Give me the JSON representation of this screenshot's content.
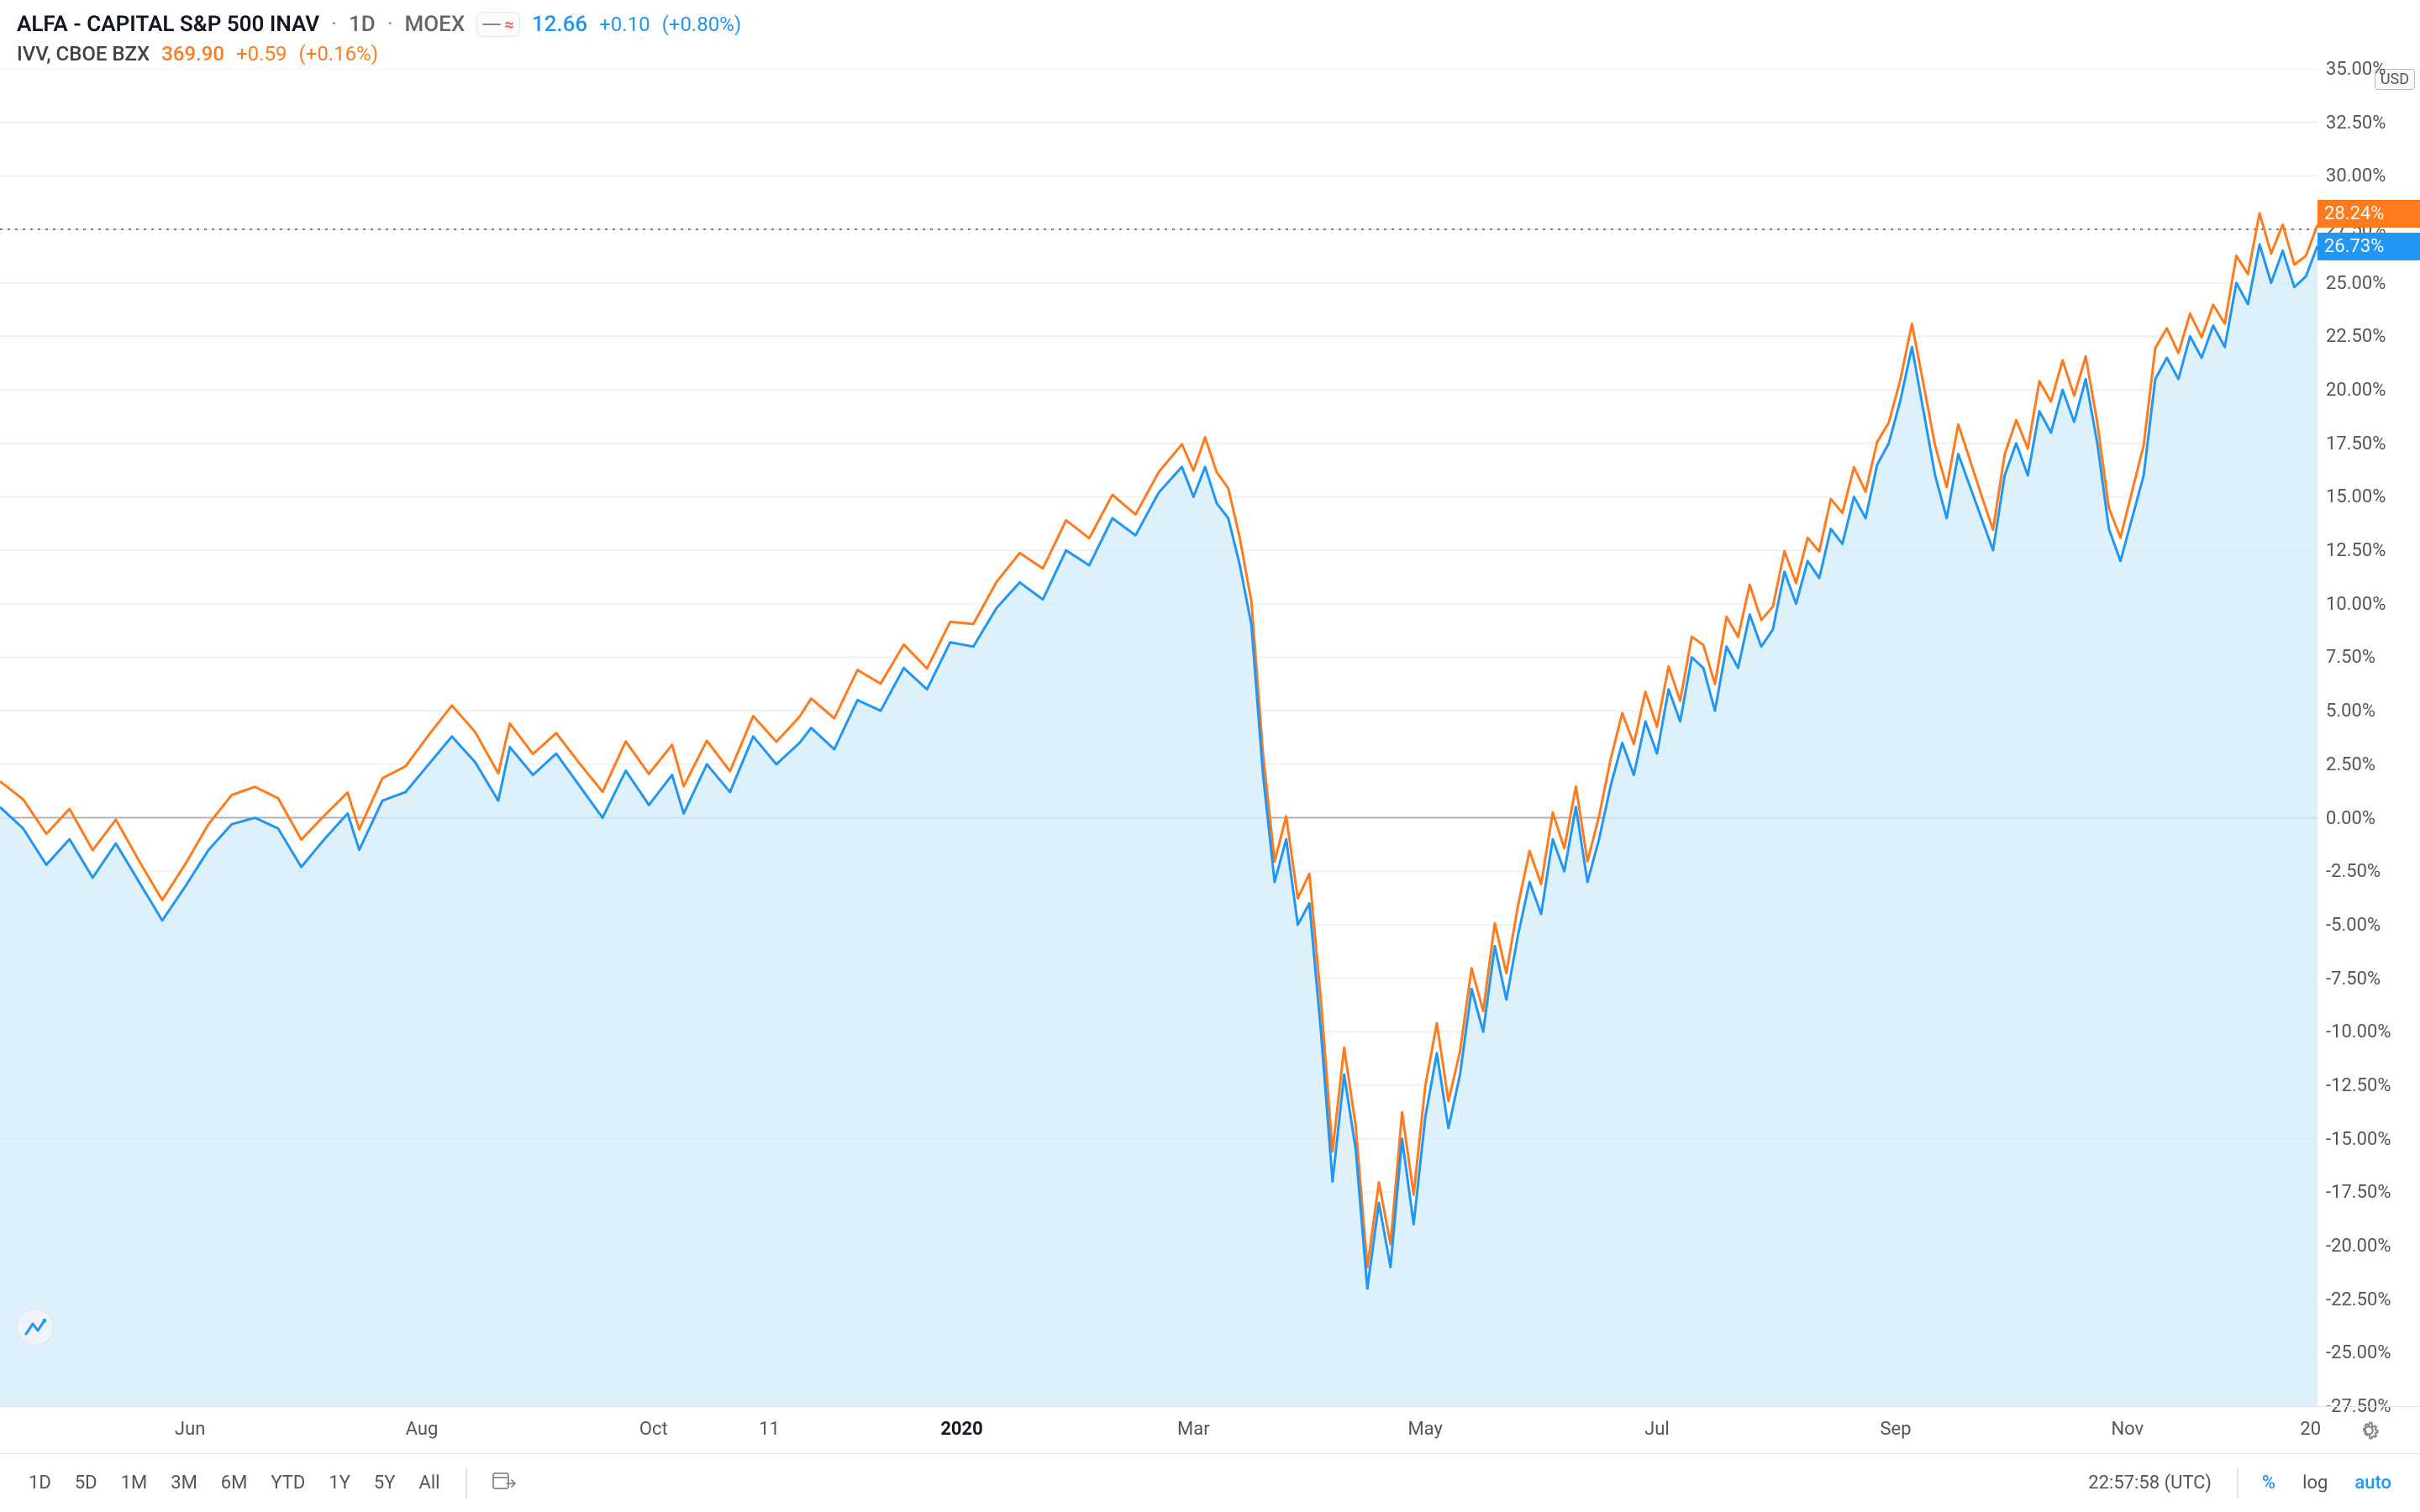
{
  "header": {
    "primary": {
      "title": "ALFA - CAPITAL S&P 500 INAV",
      "interval": "1D",
      "exchange": "MOEX",
      "price": "12.66",
      "change_abs": "+0.10",
      "change_pct": "(+0.80%)",
      "color": "#2196f3"
    },
    "secondary": {
      "title": "IVV, CBOE BZX",
      "price": "369.90",
      "change_abs": "+0.59",
      "change_pct": "(+0.16%)",
      "color": "#ff7b1d"
    }
  },
  "chart": {
    "type": "line-area-comparison",
    "background_color": "#ffffff",
    "grid_color": "#f0f0f0",
    "zero_line_color": "#b0b0b0",
    "dotted_ref_color": "#808080",
    "area_fill": "#d6ecf8",
    "ymin": -27.5,
    "ymax": 35.0,
    "ytick_step": 2.5,
    "currency_badge": "USD",
    "price_labels": [
      {
        "value": "28.24%",
        "y_pct": 28.24,
        "bg": "#ff7b1d"
      },
      {
        "value": "26.73%",
        "y_pct": 26.73,
        "bg": "#2196f3"
      }
    ],
    "dotted_ref_pct": 27.5,
    "xticks": [
      {
        "label": "Jun",
        "pos": 0.082,
        "bold": false
      },
      {
        "label": "Aug",
        "pos": 0.182,
        "bold": false
      },
      {
        "label": "Oct",
        "pos": 0.282,
        "bold": false
      },
      {
        "label": "11",
        "pos": 0.332,
        "bold": false
      },
      {
        "label": "2020",
        "pos": 0.415,
        "bold": true
      },
      {
        "label": "Mar",
        "pos": 0.515,
        "bold": false
      },
      {
        "label": "May",
        "pos": 0.615,
        "bold": false
      },
      {
        "label": "Jul",
        "pos": 0.715,
        "bold": false
      },
      {
        "label": "Sep",
        "pos": 0.818,
        "bold": false
      },
      {
        "label": "Nov",
        "pos": 0.918,
        "bold": false
      },
      {
        "label": "20",
        "pos": 0.997,
        "bold": false
      }
    ],
    "xmin": 0,
    "xmax": 400,
    "series": {
      "blue": {
        "color": "#2196f3",
        "final_value": 26.73,
        "points": [
          [
            0,
            0.5
          ],
          [
            4,
            -0.5
          ],
          [
            8,
            -2.2
          ],
          [
            12,
            -1.0
          ],
          [
            16,
            -2.8
          ],
          [
            20,
            -1.2
          ],
          [
            24,
            -3.0
          ],
          [
            28,
            -4.8
          ],
          [
            32,
            -3.2
          ],
          [
            36,
            -1.5
          ],
          [
            40,
            -0.3
          ],
          [
            44,
            0.0
          ],
          [
            48,
            -0.5
          ],
          [
            52,
            -2.3
          ],
          [
            56,
            -1.0
          ],
          [
            60,
            0.2
          ],
          [
            62,
            -1.5
          ],
          [
            66,
            0.8
          ],
          [
            70,
            1.2
          ],
          [
            74,
            2.5
          ],
          [
            78,
            3.8
          ],
          [
            82,
            2.6
          ],
          [
            86,
            0.8
          ],
          [
            88,
            3.3
          ],
          [
            92,
            2.0
          ],
          [
            96,
            3.0
          ],
          [
            100,
            1.5
          ],
          [
            104,
            0.0
          ],
          [
            108,
            2.2
          ],
          [
            112,
            0.6
          ],
          [
            116,
            2.0
          ],
          [
            118,
            0.2
          ],
          [
            122,
            2.5
          ],
          [
            126,
            1.2
          ],
          [
            130,
            3.8
          ],
          [
            134,
            2.5
          ],
          [
            138,
            3.5
          ],
          [
            140,
            4.2
          ],
          [
            144,
            3.2
          ],
          [
            148,
            5.5
          ],
          [
            152,
            5.0
          ],
          [
            156,
            7.0
          ],
          [
            160,
            6.0
          ],
          [
            164,
            8.2
          ],
          [
            168,
            8.0
          ],
          [
            172,
            9.8
          ],
          [
            176,
            11.0
          ],
          [
            180,
            10.2
          ],
          [
            184,
            12.5
          ],
          [
            188,
            11.8
          ],
          [
            192,
            14.0
          ],
          [
            196,
            13.2
          ],
          [
            200,
            15.2
          ],
          [
            204,
            16.4
          ],
          [
            206,
            15.0
          ],
          [
            208,
            16.4
          ],
          [
            210,
            14.7
          ],
          [
            212,
            14.0
          ],
          [
            214,
            11.8
          ],
          [
            216,
            9.0
          ],
          [
            218,
            2.0
          ],
          [
            220,
            -3.0
          ],
          [
            222,
            -1.0
          ],
          [
            224,
            -5.0
          ],
          [
            226,
            -4.0
          ],
          [
            228,
            -10.0
          ],
          [
            230,
            -17.0
          ],
          [
            232,
            -12.0
          ],
          [
            234,
            -15.5
          ],
          [
            236,
            -22.0
          ],
          [
            238,
            -18.0
          ],
          [
            240,
            -21.0
          ],
          [
            242,
            -15.0
          ],
          [
            244,
            -19.0
          ],
          [
            246,
            -14.0
          ],
          [
            248,
            -11.0
          ],
          [
            250,
            -14.5
          ],
          [
            252,
            -12.0
          ],
          [
            254,
            -8.0
          ],
          [
            256,
            -10.0
          ],
          [
            258,
            -6.0
          ],
          [
            260,
            -8.5
          ],
          [
            262,
            -5.5
          ],
          [
            264,
            -3.0
          ],
          [
            266,
            -4.5
          ],
          [
            268,
            -1.0
          ],
          [
            270,
            -2.5
          ],
          [
            272,
            0.5
          ],
          [
            274,
            -3.0
          ],
          [
            276,
            -1.0
          ],
          [
            278,
            1.5
          ],
          [
            280,
            3.5
          ],
          [
            282,
            2.0
          ],
          [
            284,
            4.5
          ],
          [
            286,
            3.0
          ],
          [
            288,
            6.0
          ],
          [
            290,
            4.5
          ],
          [
            292,
            7.5
          ],
          [
            294,
            7.0
          ],
          [
            296,
            5.0
          ],
          [
            298,
            8.0
          ],
          [
            300,
            7.0
          ],
          [
            302,
            9.5
          ],
          [
            304,
            8.0
          ],
          [
            306,
            8.8
          ],
          [
            308,
            11.5
          ],
          [
            310,
            10.0
          ],
          [
            312,
            12.0
          ],
          [
            314,
            11.2
          ],
          [
            316,
            13.5
          ],
          [
            318,
            12.8
          ],
          [
            320,
            15.0
          ],
          [
            322,
            14.0
          ],
          [
            324,
            16.5
          ],
          [
            326,
            17.5
          ],
          [
            328,
            19.5
          ],
          [
            330,
            22.0
          ],
          [
            332,
            19.0
          ],
          [
            334,
            16.0
          ],
          [
            336,
            14.0
          ],
          [
            338,
            17.0
          ],
          [
            340,
            15.5
          ],
          [
            342,
            14.0
          ],
          [
            344,
            12.5
          ],
          [
            346,
            16.0
          ],
          [
            348,
            17.5
          ],
          [
            350,
            16.0
          ],
          [
            352,
            19.0
          ],
          [
            354,
            18.0
          ],
          [
            356,
            20.0
          ],
          [
            358,
            18.5
          ],
          [
            360,
            20.5
          ],
          [
            362,
            17.5
          ],
          [
            364,
            13.5
          ],
          [
            366,
            12.0
          ],
          [
            368,
            14.0
          ],
          [
            370,
            16.0
          ],
          [
            372,
            20.5
          ],
          [
            374,
            21.5
          ],
          [
            376,
            20.5
          ],
          [
            378,
            22.5
          ],
          [
            380,
            21.5
          ],
          [
            382,
            23.0
          ],
          [
            384,
            22.0
          ],
          [
            386,
            25.0
          ],
          [
            388,
            24.0
          ],
          [
            390,
            26.8
          ],
          [
            392,
            25.0
          ],
          [
            394,
            26.5
          ],
          [
            396,
            24.8
          ],
          [
            398,
            25.3
          ],
          [
            400,
            26.73
          ]
        ]
      },
      "orange": {
        "color": "#ff7b1d",
        "final_value": 28.24,
        "offset_from_blue": 1.2
      }
    }
  },
  "toolbar": {
    "ranges": [
      "1D",
      "5D",
      "1M",
      "3M",
      "6M",
      "YTD",
      "1Y",
      "5Y",
      "All"
    ],
    "time": "22:57:58 (UTC)",
    "pct_label": "%",
    "log_label": "log",
    "auto_label": "auto"
  },
  "yticks_labels": [
    "35.00%",
    "32.50%",
    "30.00%",
    "27.50%",
    "25.00%",
    "22.50%",
    "20.00%",
    "17.50%",
    "15.00%",
    "12.50%",
    "10.00%",
    "7.50%",
    "5.00%",
    "2.50%",
    "0.00%",
    "-2.50%",
    "-5.00%",
    "-7.50%",
    "-10.00%",
    "-12.50%",
    "-15.00%",
    "-17.50%",
    "-20.00%",
    "-22.50%",
    "-25.00%",
    "-27.50%"
  ]
}
